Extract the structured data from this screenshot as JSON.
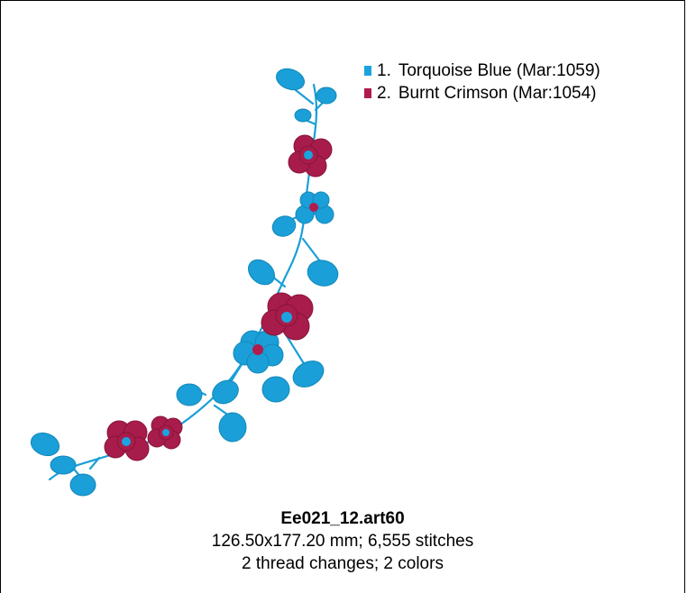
{
  "legend": [
    {
      "number": "1.",
      "name": "Torquoise Blue (Mar:1059)",
      "color": "#1aa3df"
    },
    {
      "number": "2.",
      "name": "Burnt Crimson (Mar:1054)",
      "color": "#b01c4e"
    }
  ],
  "info": {
    "filename": "Ee021_12.art60",
    "dimensions": "126.50x177.20 mm; 6,555 stitches",
    "changes": "2 thread changes; 2 colors"
  },
  "colors": {
    "blue": "#1a9fd8",
    "blue_dark": "#1488b8",
    "crimson": "#a81c4b",
    "crimson_dark": "#861538"
  }
}
